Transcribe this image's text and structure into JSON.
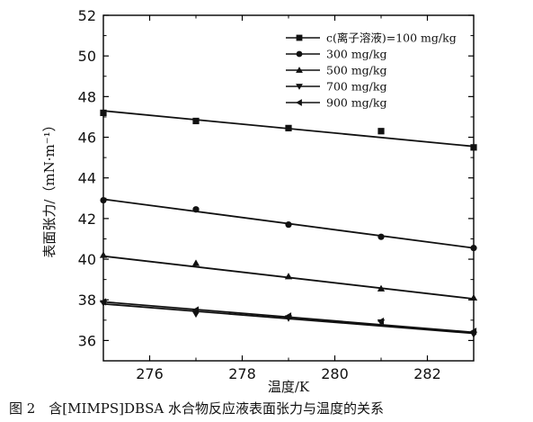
{
  "chart_data": {
    "type": "scatter",
    "xlabel": "温度/K",
    "ylabel": "表面张力/（mN·m⁻¹）",
    "xlim": [
      275,
      283
    ],
    "ylim": [
      35,
      52
    ],
    "xticks": [
      276,
      278,
      280,
      282
    ],
    "yticks": [
      36,
      38,
      40,
      42,
      44,
      46,
      48,
      50,
      52
    ],
    "legend_position": "top-right",
    "caption": "图 2　含[MIMPS]DBSA 水合物反应液表面张力与温度的关系",
    "series": [
      {
        "name": "c(离子溶液)=100 mg/kg",
        "marker": "square",
        "x": [
          275,
          277,
          279,
          281,
          283
        ],
        "y": [
          47.2,
          46.8,
          46.45,
          46.3,
          45.5
        ],
        "fit": [
          47.3,
          45.55
        ]
      },
      {
        "name": "300 mg/kg",
        "marker": "circle",
        "x": [
          275,
          277,
          279,
          281,
          283
        ],
        "y": [
          42.9,
          42.45,
          41.7,
          41.1,
          40.55
        ],
        "fit": [
          42.95,
          40.55
        ]
      },
      {
        "name": "500 mg/kg",
        "marker": "triangle-up",
        "x": [
          275,
          277,
          279,
          281,
          283
        ],
        "y": [
          40.2,
          39.8,
          39.15,
          38.55,
          38.1
        ],
        "fit": [
          40.15,
          38.05
        ]
      },
      {
        "name": "700 mg/kg",
        "marker": "triangle-down",
        "x": [
          275,
          277,
          279,
          281,
          283
        ],
        "y": [
          37.85,
          37.3,
          37.1,
          36.9,
          36.3
        ],
        "fit": [
          37.8,
          36.35
        ]
      },
      {
        "name": "900 mg/kg",
        "marker": "triangle-left",
        "x": [
          275,
          277,
          279,
          281,
          283
        ],
        "y": [
          37.9,
          37.5,
          37.2,
          36.95,
          36.45
        ],
        "fit": [
          37.9,
          36.4
        ]
      }
    ]
  }
}
